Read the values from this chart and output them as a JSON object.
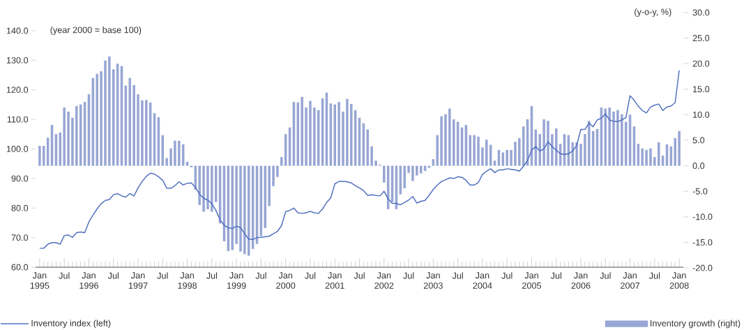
{
  "chart_data": {
    "type": "bar",
    "categories": [
      "Jan 1995",
      null,
      null,
      null,
      null,
      null,
      "Jul",
      null,
      null,
      null,
      null,
      null,
      "Jan 1996",
      null,
      null,
      null,
      null,
      null,
      "Jul",
      null,
      null,
      null,
      null,
      null,
      "Jan 1997",
      null,
      null,
      null,
      null,
      null,
      "Jul",
      null,
      null,
      null,
      null,
      null,
      "Jan 1998",
      null,
      null,
      null,
      null,
      null,
      "Jul",
      null,
      null,
      null,
      null,
      null,
      "Jan 1999",
      null,
      null,
      null,
      null,
      null,
      "Jul",
      null,
      null,
      null,
      null,
      null,
      "Jan 2000",
      null,
      null,
      null,
      null,
      null,
      "Jul",
      null,
      null,
      null,
      null,
      null,
      "Jan 2001",
      null,
      null,
      null,
      null,
      null,
      "Jul",
      null,
      null,
      null,
      null,
      null,
      "Jan 2002",
      null,
      null,
      null,
      null,
      null,
      "Jul",
      null,
      null,
      null,
      null,
      null,
      "Jan 2003",
      null,
      null,
      null,
      null,
      null,
      "Jul",
      null,
      null,
      null,
      null,
      null,
      "Jan 2004",
      null,
      null,
      null,
      null,
      null,
      "Jul",
      null,
      null,
      null,
      null,
      null,
      "Jan 2005",
      null,
      null,
      null,
      null,
      null,
      "Jul",
      null,
      null,
      null,
      null,
      null,
      "Jan 2006",
      null,
      null,
      null,
      null,
      null,
      "Jul",
      null,
      null,
      null,
      null,
      null,
      "Jan 2007",
      null,
      null,
      null,
      null,
      null,
      "Jul",
      null,
      null,
      null,
      null,
      null,
      "Jan 2008"
    ],
    "series": [
      {
        "name": "Inventory growth (right)",
        "axis": "y2",
        "color": "#97a6d4",
        "values": [
          3.9,
          3.9,
          5.5,
          8.0,
          6.2,
          6.5,
          11.4,
          10.6,
          9.4,
          11.7,
          12.0,
          12.5,
          14.0,
          17.2,
          18.0,
          18.5,
          20.6,
          21.4,
          18.9,
          20.0,
          19.5,
          15.7,
          17.2,
          15.8,
          14.0,
          12.8,
          12.9,
          12.4,
          10.3,
          9.5,
          6.0,
          1.5,
          3.4,
          4.9,
          4.9,
          4.2,
          0.8,
          -0.3,
          -4.7,
          -7.7,
          -9.0,
          -8.5,
          -9.0,
          -7.1,
          -11.3,
          -14.8,
          -16.7,
          -16.5,
          -15.3,
          -16.8,
          -17.3,
          -17.6,
          -16.3,
          -15.3,
          -13.8,
          -12.2,
          -7.9,
          -4.0,
          -2.2,
          1.7,
          6.2,
          7.5,
          12.5,
          12.4,
          13.5,
          11.4,
          12.7,
          11.4,
          10.9,
          13.2,
          14.3,
          12.2,
          12.0,
          12.5,
          10.6,
          13.1,
          12.1,
          10.9,
          9.4,
          8.3,
          7.1,
          3.8,
          1.0,
          0.2,
          -3.3,
          -8.5,
          -7.1,
          -8.5,
          -5.6,
          -4.4,
          -1.4,
          -3.0,
          -1.9,
          -1.5,
          -1.0,
          -0.4,
          1.3,
          6.0,
          9.7,
          10.1,
          11.2,
          9.1,
          8.6,
          7.5,
          8.0,
          6.0,
          6.0,
          5.7,
          3.6,
          5.1,
          4.1,
          1.0,
          3.1,
          2.6,
          3.1,
          3.1,
          4.7,
          5.4,
          7.7,
          9.1,
          11.7,
          7.1,
          6.2,
          9.1,
          8.8,
          6.2,
          7.3,
          4.3,
          6.2,
          6.0,
          4.6,
          4.6,
          4.3,
          6.2,
          8.8,
          6.8,
          7.2,
          11.4,
          11.2,
          11.4,
          10.6,
          10.9,
          10.1,
          8.6,
          10.0,
          7.7,
          4.3,
          3.4,
          3.1,
          3.4,
          1.7,
          4.6,
          2.0,
          4.2,
          3.8,
          5.4,
          6.8
        ]
      },
      {
        "name": "Inventory index (left)",
        "type": "line",
        "axis": "y",
        "color": "#4f6fbf",
        "values": [
          66.4,
          66.4,
          67.8,
          68.3,
          68.3,
          67.8,
          70.7,
          70.9,
          70.1,
          71.7,
          71.9,
          71.7,
          75.3,
          77.6,
          79.7,
          81.5,
          82.6,
          82.9,
          84.5,
          84.9,
          84.1,
          83.7,
          84.9,
          84.1,
          86.8,
          89.0,
          90.7,
          91.8,
          91.5,
          90.6,
          89.4,
          86.7,
          86.7,
          87.6,
          88.9,
          87.8,
          88.4,
          88.5,
          87.0,
          84.7,
          83.3,
          82.7,
          81.5,
          79.2,
          76.0,
          74.2,
          73.3,
          73.1,
          73.9,
          73.4,
          71.3,
          69.5,
          69.4,
          70.0,
          70.1,
          70.3,
          70.5,
          71.3,
          72.1,
          74.1,
          78.8,
          79.2,
          80.0,
          78.4,
          78.2,
          78.4,
          78.9,
          78.4,
          78.2,
          79.7,
          81.9,
          83.5,
          88.2,
          89.0,
          89.0,
          88.9,
          88.5,
          87.6,
          86.8,
          85.9,
          84.3,
          84.5,
          84.3,
          84.1,
          85.7,
          83.1,
          81.6,
          81.6,
          81.1,
          81.9,
          82.7,
          83.9,
          81.7,
          82.3,
          82.6,
          84.3,
          86.3,
          87.8,
          89.0,
          89.6,
          90.2,
          90.0,
          90.6,
          90.4,
          89.4,
          87.8,
          87.8,
          88.6,
          91.4,
          92.5,
          93.3,
          92.0,
          92.9,
          92.9,
          93.3,
          93.1,
          92.9,
          92.5,
          94.1,
          96.1,
          99.6,
          100.8,
          99.3,
          100.0,
          102.4,
          100.8,
          99.6,
          98.4,
          98.1,
          98.4,
          99.3,
          101.2,
          106.6,
          106.6,
          108.8,
          107.5,
          109.8,
          110.4,
          111.9,
          109.8,
          109.3,
          109.3,
          109.8,
          110.6,
          118.0,
          116.5,
          114.5,
          113.0,
          112.2,
          114.2,
          114.8,
          115.2,
          113.0,
          114.2,
          114.5,
          115.7,
          126.6
        ]
      }
    ],
    "ylabel": "(year 2000 = base 100)",
    "y2label": "(y-o-y, %)",
    "ylim": [
      60,
      140
    ],
    "yticks": [
      {
        "value": 60,
        "label": "60.0"
      },
      {
        "value": 70,
        "label": "70.0"
      },
      {
        "value": 80,
        "label": "80.0"
      },
      {
        "value": 90,
        "label": "90.0"
      },
      {
        "value": 100,
        "label": "100.0"
      },
      {
        "value": 110,
        "label": "110.0"
      },
      {
        "value": 120,
        "label": "120.0"
      },
      {
        "value": 130,
        "label": "130.0"
      },
      {
        "value": 140,
        "label": "140.0"
      }
    ],
    "y2lim": [
      -20,
      30
    ],
    "y2ticks": [
      {
        "value": -20,
        "label": "-20.0"
      },
      {
        "value": -15,
        "label": "-15.0"
      },
      {
        "value": -10,
        "label": "-10.0"
      },
      {
        "value": -5,
        "label": "-5.0"
      },
      {
        "value": 0,
        "label": "0.0"
      },
      {
        "value": 5,
        "label": "5.0"
      },
      {
        "value": 10,
        "label": "10.0"
      },
      {
        "value": 15,
        "label": "15.0"
      },
      {
        "value": 20,
        "label": "20.0"
      },
      {
        "value": 25,
        "label": "25.0"
      },
      {
        "value": 30,
        "label": "30.0"
      }
    ],
    "legend": "bottom"
  }
}
